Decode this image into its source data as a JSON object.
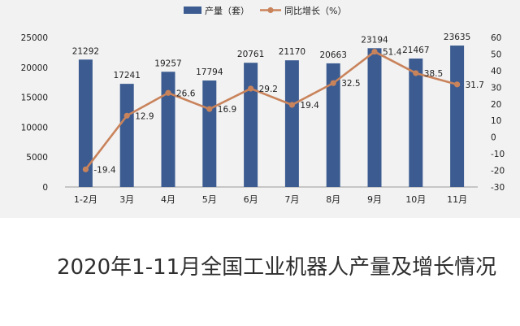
{
  "chart_data": {
    "type": "bar",
    "categories": [
      "1-2月",
      "3月",
      "4月",
      "5月",
      "6月",
      "7月",
      "8月",
      "9月",
      "10月",
      "11月"
    ],
    "series": [
      {
        "name": "产量（套）",
        "type": "bar",
        "axis": "left",
        "color": "#3c5c91",
        "values": [
          21292,
          17241,
          19257,
          17794,
          20761,
          21170,
          20663,
          23194,
          21467,
          23635
        ]
      },
      {
        "name": "同比增长（%）",
        "type": "line",
        "axis": "right",
        "color": "#c9835b",
        "values": [
          -19.4,
          12.9,
          26.6,
          16.9,
          29.2,
          19.4,
          32.5,
          51.4,
          38.5,
          31.7
        ]
      }
    ],
    "bar_labels": [
      "21292",
      "17241",
      "19257",
      "17794",
      "20761",
      "21170",
      "20663",
      "23194",
      "21467",
      "23635"
    ],
    "line_labels": [
      "-19.4",
      "12.9",
      "26.6",
      "16.9",
      "29.2",
      "19.4",
      "32.5",
      "51.4",
      "38.5",
      "31.7"
    ],
    "y_left": {
      "range": [
        0,
        25000
      ],
      "ticks": [
        "0",
        "5000",
        "10000",
        "15000",
        "20000",
        "25000"
      ]
    },
    "y_right": {
      "range": [
        -30,
        60
      ],
      "ticks": [
        "-30",
        "-20",
        "-10",
        "0",
        "10",
        "20",
        "30",
        "40",
        "50",
        "60"
      ]
    },
    "legend": {
      "position": "top-center"
    },
    "grid": false
  },
  "caption": "2020年1-11月全国工业机器人产量及增长情况"
}
